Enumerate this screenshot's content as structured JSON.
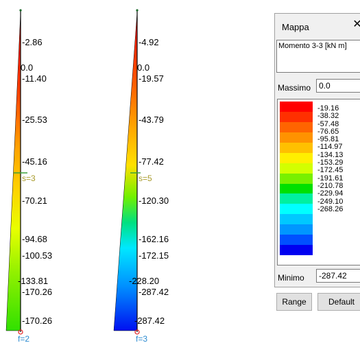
{
  "diagram": {
    "member1": {
      "labels": [
        "-2.86",
        "0.0",
        "-11.40",
        "-25.53",
        "-45.16",
        "-70.21",
        "-94.68",
        "-100.53",
        "-133.81",
        "-170.26",
        "-170.26"
      ],
      "section_label": "s=3",
      "node_label": "f=2"
    },
    "member2": {
      "labels": [
        "-4.92",
        "0.0",
        "-19.57",
        "-43.79",
        "-77.42",
        "-120.30",
        "-162.16",
        "-172.15",
        "-228.20",
        "-287.42",
        "-287.42"
      ],
      "section_label": "s=5",
      "node_label": "f=3"
    }
  },
  "panel": {
    "title": "Mappa",
    "close_icon": "close-icon",
    "quantity": "Momento 3-3 [kN  m]",
    "max_label": "Massimo",
    "max_value": "0.0",
    "min_label": "Minimo",
    "min_value": "-287.42",
    "range_button": "Range",
    "default_button": "Default",
    "scale": [
      {
        "color": "#ff0000",
        "value": "-19.16"
      },
      {
        "color": "#ff3000",
        "value": "-38.32"
      },
      {
        "color": "#ff6400",
        "value": "-57.48"
      },
      {
        "color": "#ff9200",
        "value": "-76.65"
      },
      {
        "color": "#ffc000",
        "value": "-95.81"
      },
      {
        "color": "#ffef00",
        "value": "-114.97"
      },
      {
        "color": "#d2ff00",
        "value": "-134.13"
      },
      {
        "color": "#78f000",
        "value": "-153.29"
      },
      {
        "color": "#00e000",
        "value": "-172.45"
      },
      {
        "color": "#00f0a0",
        "value": "-191.61"
      },
      {
        "color": "#00ffff",
        "value": "-210.78"
      },
      {
        "color": "#00c8ff",
        "value": "-229.94"
      },
      {
        "color": "#0096ff",
        "value": "-249.10"
      },
      {
        "color": "#0050ff",
        "value": "-268.26"
      },
      {
        "color": "#0000f0",
        "value": ""
      }
    ]
  }
}
